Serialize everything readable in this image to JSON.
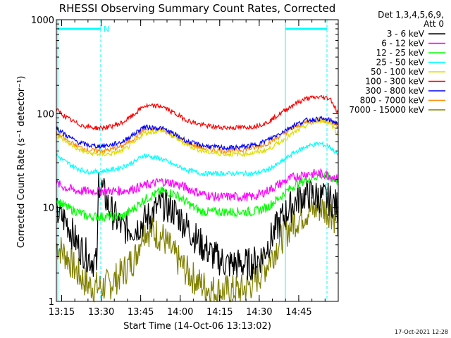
{
  "chart_data": {
    "type": "line",
    "title": "RHESSI Observing Summary Count Rates, Corrected",
    "xlabel": "Start Time (14-Oct-06 13:13:02)",
    "ylabel": "Corrected Count Rate (s⁻¹ detector⁻¹)",
    "ylog": true,
    "ylim": [
      1,
      1000
    ],
    "xlim_minutes_after_1313": [
      0,
      107
    ],
    "x_ticks": [
      {
        "label": "13:15",
        "t": 2
      },
      {
        "label": "13:30",
        "t": 17
      },
      {
        "label": "13:45",
        "t": 32
      },
      {
        "label": "14:00",
        "t": 47
      },
      {
        "label": "14:15",
        "t": 62
      },
      {
        "label": "14:30",
        "t": 77
      },
      {
        "label": "14:45",
        "t": 92
      }
    ],
    "y_ticks": [
      {
        "label": "1",
        "v": 1
      },
      {
        "label": "10",
        "v": 10
      },
      {
        "label": "100",
        "v": 100
      },
      {
        "label": "1000",
        "v": 1000
      }
    ],
    "legend": {
      "header": [
        "Det 1,3,4,5,6,9,",
        "Att 0"
      ],
      "placement": "right"
    },
    "series": [
      {
        "name": "3 - 6 keV",
        "color": "#000000",
        "t": [
          0,
          4,
          8,
          12,
          15.5,
          16,
          20,
          25,
          30,
          33,
          40,
          45,
          50,
          55,
          60,
          65,
          70,
          74,
          78,
          82,
          86,
          90,
          93,
          96,
          104,
          107
        ],
        "values": [
          9,
          7,
          4,
          3,
          2.5,
          20,
          10,
          6,
          6,
          7,
          11,
          9,
          6,
          4,
          3,
          2.5,
          2.5,
          2.5,
          3,
          5,
          8,
          11,
          13,
          14,
          12,
          10
        ]
      },
      {
        "name": "6 - 12 keV",
        "color": "#ff00ff",
        "t": [
          0,
          4,
          8,
          12,
          16,
          20,
          25,
          30,
          33,
          40,
          45,
          50,
          55,
          60,
          65,
          70,
          75,
          80,
          85,
          90,
          95,
          100,
          104,
          107
        ],
        "values": [
          18,
          16,
          15,
          15,
          15,
          15,
          15,
          16,
          17,
          19,
          18,
          16,
          14,
          13,
          13,
          13,
          13,
          15,
          18,
          21,
          23,
          23,
          22,
          20
        ]
      },
      {
        "name": "12 - 25 keV",
        "color": "#00ff00",
        "t": [
          0,
          4,
          8,
          12,
          16,
          20,
          25,
          30,
          33,
          40,
          45,
          50,
          55,
          60,
          65,
          70,
          75,
          80,
          85,
          90,
          95,
          100,
          104,
          107
        ],
        "values": [
          12,
          10,
          9,
          8,
          8,
          8,
          8,
          10,
          12,
          15,
          14,
          11,
          9,
          9,
          9,
          9,
          9,
          10,
          13,
          17,
          20,
          22,
          21,
          19
        ]
      },
      {
        "name": "25 - 50 keV",
        "color": "#00ffff",
        "t": [
          0,
          4,
          8,
          12,
          16,
          20,
          25,
          30,
          33,
          40,
          45,
          50,
          55,
          60,
          65,
          70,
          75,
          80,
          85,
          90,
          95,
          100,
          104,
          107
        ],
        "values": [
          36,
          30,
          26,
          24,
          24,
          25,
          27,
          31,
          36,
          33,
          28,
          25,
          23,
          23,
          23,
          23,
          23,
          25,
          30,
          38,
          45,
          48,
          44,
          36
        ]
      },
      {
        "name": "50 - 100 keV",
        "color": "#dddd00",
        "t": [
          0,
          4,
          8,
          12,
          16,
          20,
          25,
          30,
          33,
          40,
          45,
          50,
          55,
          60,
          65,
          70,
          75,
          80,
          85,
          90,
          95,
          100,
          104,
          107
        ],
        "values": [
          58,
          50,
          42,
          38,
          37,
          37,
          40,
          50,
          62,
          66,
          56,
          46,
          40,
          38,
          37,
          37,
          38,
          41,
          50,
          62,
          75,
          85,
          80,
          60
        ]
      },
      {
        "name": "100 - 300 keV",
        "color": "#ff0000",
        "t": [
          0,
          4,
          8,
          12,
          16,
          20,
          25,
          30,
          33,
          40,
          45,
          50,
          55,
          60,
          65,
          70,
          75,
          80,
          85,
          90,
          95,
          100,
          104,
          107
        ],
        "values": [
          110,
          90,
          78,
          72,
          70,
          72,
          80,
          100,
          120,
          120,
          100,
          84,
          76,
          72,
          71,
          71,
          73,
          80,
          100,
          125,
          145,
          150,
          145,
          100
        ]
      },
      {
        "name": "300 - 800 keV",
        "color": "#0000ff",
        "t": [
          0,
          4,
          8,
          12,
          16,
          20,
          25,
          30,
          33,
          40,
          45,
          50,
          55,
          60,
          65,
          70,
          75,
          80,
          85,
          90,
          95,
          100,
          104,
          107
        ],
        "values": [
          70,
          58,
          50,
          46,
          45,
          46,
          50,
          62,
          72,
          70,
          60,
          50,
          46,
          44,
          43,
          44,
          46,
          52,
          62,
          75,
          85,
          88,
          85,
          78
        ]
      },
      {
        "name": "800 - 7000 keV",
        "color": "#ff8800",
        "t": [
          0,
          4,
          8,
          12,
          16,
          20,
          25,
          30,
          33,
          40,
          45,
          50,
          55,
          60,
          65,
          70,
          75,
          80,
          85,
          90,
          95,
          100,
          104,
          107
        ],
        "values": [
          62,
          52,
          45,
          41,
          40,
          41,
          45,
          56,
          67,
          68,
          57,
          48,
          43,
          41,
          40,
          41,
          43,
          48,
          58,
          70,
          82,
          86,
          82,
          74
        ]
      },
      {
        "name": "7000 - 15000 keV",
        "color": "#808000",
        "t": [
          0,
          4,
          8,
          12,
          16,
          20,
          25,
          30,
          33,
          40,
          45,
          50,
          55,
          60,
          65,
          70,
          75,
          80,
          85,
          90,
          95,
          100,
          104,
          107
        ],
        "values": [
          4,
          3,
          2,
          1.5,
          1.4,
          1.5,
          2,
          3,
          6,
          5,
          3,
          2,
          1.5,
          1.3,
          1.3,
          1.3,
          1.6,
          2.5,
          4.5,
          7,
          9,
          10,
          9,
          7
        ]
      }
    ],
    "annotations": [
      {
        "label": "N",
        "t": 17
      }
    ]
  },
  "footer": {
    "timestamp": "17-Oct-2021 12:28"
  }
}
